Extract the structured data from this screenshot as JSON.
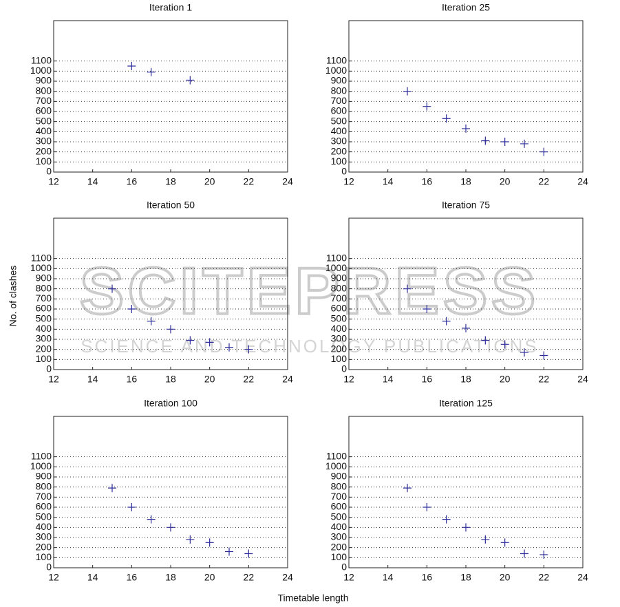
{
  "chart_data": [
    {
      "type": "scatter",
      "title": "Iteration 1",
      "x": [
        16,
        17,
        19
      ],
      "values": [
        1050,
        990,
        910
      ],
      "color": "#2b2b9a",
      "xlim": [
        12,
        24
      ],
      "ylim": [
        0,
        1500
      ],
      "xticks": [
        12,
        14,
        16,
        18,
        20,
        22,
        24
      ],
      "yticks": [
        0,
        100,
        200,
        300,
        400,
        500,
        600,
        700,
        800,
        900,
        1000,
        1100
      ],
      "grid": true
    },
    {
      "type": "scatter",
      "title": "Iteration 25",
      "x": [
        15,
        16,
        17,
        18,
        19,
        20,
        21,
        22
      ],
      "values": [
        800,
        650,
        530,
        430,
        310,
        300,
        280,
        200
      ],
      "color": "#2b2b9a",
      "xlim": [
        12,
        24
      ],
      "ylim": [
        0,
        1500
      ],
      "xticks": [
        12,
        14,
        16,
        18,
        20,
        22,
        24
      ],
      "yticks": [
        0,
        100,
        200,
        300,
        400,
        500,
        600,
        700,
        800,
        900,
        1000,
        1100
      ],
      "grid": true
    },
    {
      "type": "scatter",
      "title": "Iteration 50",
      "x": [
        15,
        16,
        17,
        18,
        19,
        20,
        21,
        22
      ],
      "values": [
        800,
        600,
        480,
        400,
        290,
        270,
        220,
        200
      ],
      "color": "#2b2b9a",
      "xlim": [
        12,
        24
      ],
      "ylim": [
        0,
        1500
      ],
      "xticks": [
        12,
        14,
        16,
        18,
        20,
        22,
        24
      ],
      "yticks": [
        0,
        100,
        200,
        300,
        400,
        500,
        600,
        700,
        800,
        900,
        1000,
        1100
      ],
      "grid": true
    },
    {
      "type": "scatter",
      "title": "Iteration 75",
      "x": [
        15,
        16,
        17,
        18,
        19,
        20,
        21,
        22
      ],
      "values": [
        800,
        600,
        480,
        410,
        290,
        250,
        170,
        140
      ],
      "color": "#2b2b9a",
      "xlim": [
        12,
        24
      ],
      "ylim": [
        0,
        1500
      ],
      "xticks": [
        12,
        14,
        16,
        18,
        20,
        22,
        24
      ],
      "yticks": [
        0,
        100,
        200,
        300,
        400,
        500,
        600,
        700,
        800,
        900,
        1000,
        1100
      ],
      "grid": true
    },
    {
      "type": "scatter",
      "title": "Iteration 100",
      "x": [
        15,
        16,
        17,
        18,
        19,
        20,
        21,
        22
      ],
      "values": [
        790,
        600,
        480,
        400,
        280,
        250,
        160,
        140
      ],
      "color": "#2b2b9a",
      "xlim": [
        12,
        24
      ],
      "ylim": [
        0,
        1500
      ],
      "xticks": [
        12,
        14,
        16,
        18,
        20,
        22,
        24
      ],
      "yticks": [
        0,
        100,
        200,
        300,
        400,
        500,
        600,
        700,
        800,
        900,
        1000,
        1100
      ],
      "grid": true
    },
    {
      "type": "scatter",
      "title": "Iteration 125",
      "x": [
        15,
        16,
        17,
        18,
        19,
        20,
        21,
        22
      ],
      "values": [
        790,
        600,
        480,
        400,
        280,
        250,
        140,
        130
      ],
      "color": "#2b2b9a",
      "xlim": [
        12,
        24
      ],
      "ylim": [
        0,
        1500
      ],
      "xticks": [
        12,
        14,
        16,
        18,
        20,
        22,
        24
      ],
      "yticks": [
        0,
        100,
        200,
        300,
        400,
        500,
        600,
        700,
        800,
        900,
        1000,
        1100
      ],
      "grid": true
    }
  ],
  "xlabel": "Timetable length",
  "ylabel": "No. of clashes",
  "watermark": {
    "title": "SCITEPRESS",
    "subtitle": "SCIENCE AND TECHNOLOGY PUBLICATIONS"
  }
}
